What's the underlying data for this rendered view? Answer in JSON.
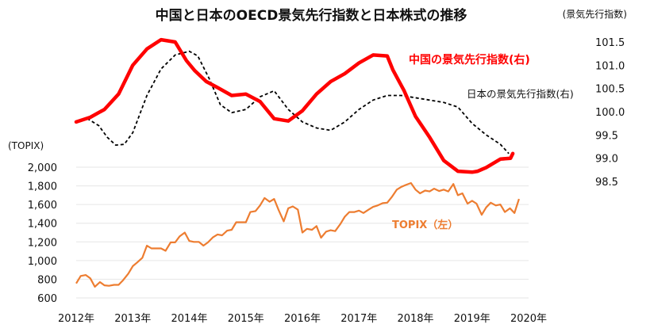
{
  "chart_data": {
    "type": "line",
    "title": "中国と日本のOECD景気先行指数と日本株式の推移",
    "x_axis": {
      "labels": [
        "2012年",
        "2013年",
        "2014年",
        "2015年",
        "2016年",
        "2017年",
        "2018年",
        "2019年",
        "2020年"
      ],
      "range": [
        2012.0,
        2020.0
      ]
    },
    "left_axis": {
      "unit_label": "(TOPIX)",
      "ticks": [
        "600",
        "800",
        "1,000",
        "1,200",
        "1,400",
        "1,600",
        "1,800",
        "2,000"
      ],
      "range": [
        600,
        2000
      ]
    },
    "right_axis": {
      "unit_label": "(景気先行指数)",
      "ticks": [
        "98.5",
        "99.0",
        "99.5",
        "100.0",
        "100.5",
        "101.0",
        "101.5"
      ],
      "range": [
        98.5,
        101.5
      ]
    },
    "series": [
      {
        "name": "中国の景気先行指数(右)",
        "axis": "right",
        "color": "#ff0000",
        "x": [
          2012.0,
          2012.25,
          2012.5,
          2012.75,
          2013.0,
          2013.25,
          2013.5,
          2013.75,
          2013.95,
          2014.1,
          2014.3,
          2014.5,
          2014.75,
          2015.0,
          2015.25,
          2015.5,
          2015.75,
          2016.0,
          2016.25,
          2016.5,
          2016.75,
          2017.0,
          2017.25,
          2017.5,
          2017.6,
          2017.8,
          2018.0,
          2018.25,
          2018.5,
          2018.75,
          2019.0,
          2019.1,
          2019.25,
          2019.5,
          2019.68,
          2019.72
        ],
        "values": [
          99.78,
          99.88,
          100.05,
          100.38,
          101.0,
          101.35,
          101.55,
          101.5,
          101.1,
          100.88,
          100.65,
          100.52,
          100.35,
          100.38,
          100.22,
          99.85,
          99.8,
          100.02,
          100.38,
          100.65,
          100.82,
          101.05,
          101.22,
          101.2,
          100.9,
          100.45,
          99.9,
          99.45,
          98.95,
          98.72,
          98.7,
          98.72,
          98.8,
          98.98,
          99.0,
          99.1
        ]
      },
      {
        "name": "日本の景気先行指数(右)",
        "axis": "right",
        "color": "#000000",
        "x": [
          2012.0,
          2012.2,
          2012.4,
          2012.55,
          2012.7,
          2012.85,
          2013.0,
          2013.25,
          2013.5,
          2013.75,
          2014.0,
          2014.15,
          2014.35,
          2014.55,
          2014.75,
          2015.0,
          2015.25,
          2015.5,
          2015.75,
          2016.0,
          2016.25,
          2016.5,
          2016.75,
          2017.0,
          2017.25,
          2017.5,
          2017.75,
          2018.0,
          2018.25,
          2018.5,
          2018.75,
          2019.0,
          2019.25,
          2019.5,
          2019.65
        ],
        "values": [
          99.8,
          99.85,
          99.7,
          99.45,
          99.28,
          99.3,
          99.55,
          100.35,
          100.92,
          101.22,
          101.3,
          101.2,
          100.72,
          100.15,
          99.98,
          100.05,
          100.32,
          100.45,
          100.05,
          99.78,
          99.65,
          99.6,
          99.78,
          100.05,
          100.25,
          100.35,
          100.35,
          100.3,
          100.25,
          100.2,
          100.1,
          99.75,
          99.5,
          99.3,
          99.1
        ]
      },
      {
        "name": "TOPIX（左）",
        "axis": "left",
        "color": "#ed7d31",
        "x": [
          2012.0,
          2012.08,
          2012.17,
          2012.25,
          2012.33,
          2012.42,
          2012.5,
          2012.58,
          2012.67,
          2012.75,
          2012.83,
          2012.92,
          2013.0,
          2013.08,
          2013.17,
          2013.25,
          2013.33,
          2013.42,
          2013.5,
          2013.58,
          2013.67,
          2013.75,
          2013.83,
          2013.92,
          2014.0,
          2014.08,
          2014.17,
          2014.25,
          2014.33,
          2014.42,
          2014.5,
          2014.58,
          2014.67,
          2014.75,
          2014.83,
          2014.92,
          2015.0,
          2015.08,
          2015.17,
          2015.25,
          2015.33,
          2015.42,
          2015.5,
          2015.58,
          2015.67,
          2015.75,
          2015.83,
          2015.92,
          2016.0,
          2016.08,
          2016.17,
          2016.25,
          2016.33,
          2016.42,
          2016.5,
          2016.58,
          2016.67,
          2016.75,
          2016.83,
          2016.92,
          2017.0,
          2017.08,
          2017.17,
          2017.25,
          2017.33,
          2017.42,
          2017.5,
          2017.58,
          2017.67,
          2017.75,
          2017.83,
          2017.92,
          2018.0,
          2018.08,
          2018.17,
          2018.25,
          2018.33,
          2018.42,
          2018.5,
          2018.58,
          2018.67,
          2018.75,
          2018.83,
          2018.92,
          2019.0,
          2019.08,
          2019.17,
          2019.25,
          2019.33,
          2019.42,
          2019.5,
          2019.58,
          2019.67,
          2019.75,
          2019.83
        ],
        "values": [
          755,
          835,
          845,
          810,
          720,
          770,
          735,
          730,
          740,
          740,
          790,
          860,
          940,
          980,
          1030,
          1160,
          1130,
          1130,
          1130,
          1105,
          1195,
          1195,
          1260,
          1300,
          1210,
          1200,
          1200,
          1160,
          1195,
          1250,
          1280,
          1270,
          1320,
          1330,
          1410,
          1410,
          1410,
          1520,
          1530,
          1590,
          1670,
          1630,
          1660,
          1540,
          1420,
          1560,
          1580,
          1545,
          1300,
          1340,
          1330,
          1370,
          1245,
          1310,
          1325,
          1315,
          1390,
          1470,
          1520,
          1520,
          1535,
          1510,
          1545,
          1575,
          1590,
          1615,
          1620,
          1680,
          1760,
          1790,
          1810,
          1830,
          1760,
          1720,
          1750,
          1740,
          1770,
          1745,
          1760,
          1740,
          1820,
          1700,
          1720,
          1610,
          1640,
          1610,
          1490,
          1570,
          1620,
          1590,
          1600,
          1520,
          1560,
          1510,
          1660
        ]
      }
    ],
    "annotations": {
      "china": "中国の景気先行指数(右)",
      "japan": "日本の景気先行指数(右)",
      "topix": "TOPIX（左）"
    },
    "grid": true,
    "legend": "inline labels"
  }
}
